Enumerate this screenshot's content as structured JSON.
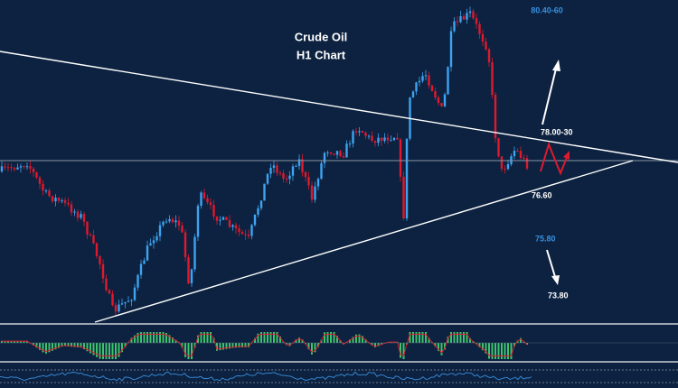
{
  "chart_data": {
    "type": "candlestick",
    "title": "Crude Oil",
    "subtitle": "H1 Chart",
    "annotations": [
      {
        "label": "80.40-60",
        "color": "#3a8fe0"
      },
      {
        "label": "78.00-30",
        "color": "#ffffff"
      },
      {
        "label": "76.60",
        "color": "#ffffff"
      },
      {
        "label": "75.80",
        "color": "#3a8fe0"
      },
      {
        "label": "73.80",
        "color": "#ffffff"
      }
    ]
  }
}
